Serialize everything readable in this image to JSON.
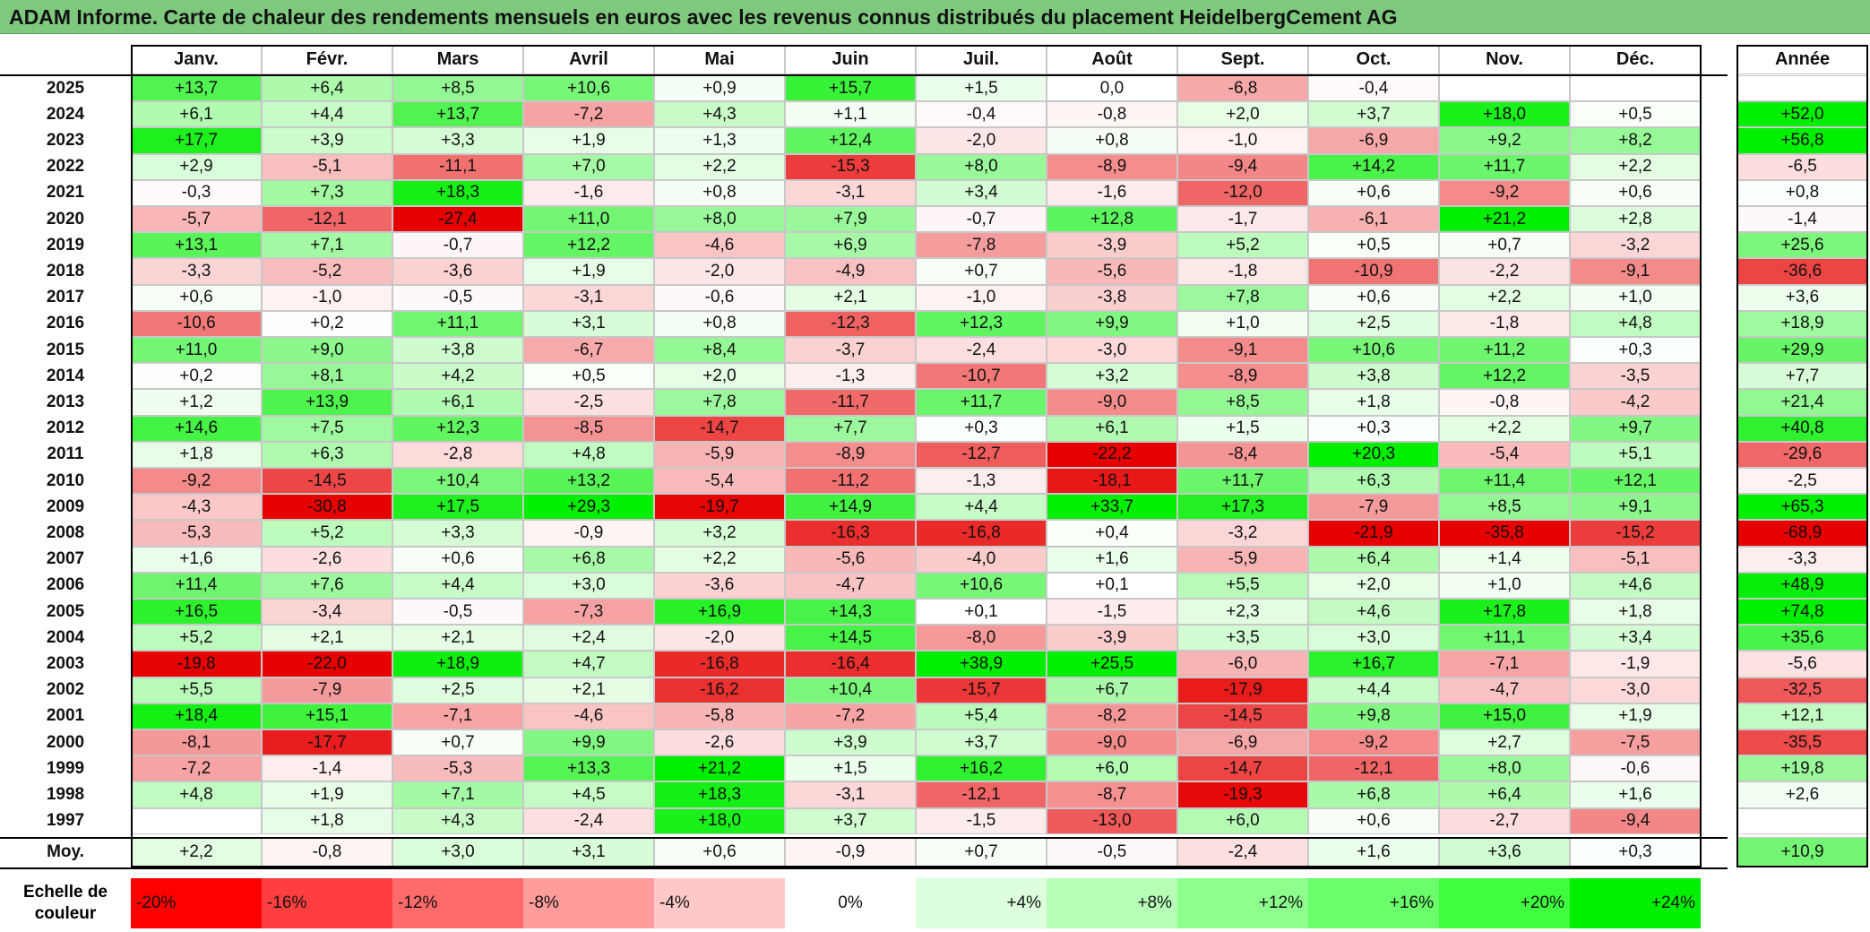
{
  "title": "ADAM Informe. Carte de chaleur des rendements mensuels en euros avec les revenus connus distribués du placement HeidelbergCement AG",
  "chart_data": {
    "type": "heatmap",
    "columns": [
      "Janv.",
      "Févr.",
      "Mars",
      "Avril",
      "Mai",
      "Juin",
      "Juil.",
      "Août",
      "Sept.",
      "Oct.",
      "Nov.",
      "Déc."
    ],
    "year_column_label": "Année",
    "rows": [
      {
        "year": "2025",
        "values": [
          "+13,7",
          "+6,4",
          "+8,5",
          "+10,6",
          "+0,9",
          "+15,7",
          "+1,5",
          "0,0",
          "-6,8",
          "-0,4",
          "",
          ""
        ],
        "annual": ""
      },
      {
        "year": "2024",
        "values": [
          "+6,1",
          "+4,4",
          "+13,7",
          "-7,2",
          "+4,3",
          "+1,1",
          "-0,4",
          "-0,8",
          "+2,0",
          "+3,7",
          "+18,0",
          "+0,5"
        ],
        "annual": "+52,0"
      },
      {
        "year": "2023",
        "values": [
          "+17,7",
          "+3,9",
          "+3,3",
          "+1,9",
          "+1,3",
          "+12,4",
          "-2,0",
          "+0,8",
          "-1,0",
          "-6,9",
          "+9,2",
          "+8,2"
        ],
        "annual": "+56,8"
      },
      {
        "year": "2022",
        "values": [
          "+2,9",
          "-5,1",
          "-11,1",
          "+7,0",
          "+2,2",
          "-15,3",
          "+8,0",
          "-8,9",
          "-9,4",
          "+14,2",
          "+11,7",
          "+2,2"
        ],
        "annual": "-6,5"
      },
      {
        "year": "2021",
        "values": [
          "-0,3",
          "+7,3",
          "+18,3",
          "-1,6",
          "+0,8",
          "-3,1",
          "+3,4",
          "-1,6",
          "-12,0",
          "+0,6",
          "-9,2",
          "+0,6"
        ],
        "annual": "+0,8"
      },
      {
        "year": "2020",
        "values": [
          "-5,7",
          "-12,1",
          "-27,4",
          "+11,0",
          "+8,0",
          "+7,9",
          "-0,7",
          "+12,8",
          "-1,7",
          "-6,1",
          "+21,2",
          "+2,8"
        ],
        "annual": "-1,4"
      },
      {
        "year": "2019",
        "values": [
          "+13,1",
          "+7,1",
          "-0,7",
          "+12,2",
          "-4,6",
          "+6,9",
          "-7,8",
          "-3,9",
          "+5,2",
          "+0,5",
          "+0,7",
          "-3,2"
        ],
        "annual": "+25,6"
      },
      {
        "year": "2018",
        "values": [
          "-3,3",
          "-5,2",
          "-3,6",
          "+1,9",
          "-2,0",
          "-4,9",
          "+0,7",
          "-5,6",
          "-1,8",
          "-10,9",
          "-2,2",
          "-9,1"
        ],
        "annual": "-36,6"
      },
      {
        "year": "2017",
        "values": [
          "+0,6",
          "-1,0",
          "-0,5",
          "-3,1",
          "-0,6",
          "+2,1",
          "-1,0",
          "-3,8",
          "+7,8",
          "+0,6",
          "+2,2",
          "+1,0"
        ],
        "annual": "+3,6"
      },
      {
        "year": "2016",
        "values": [
          "-10,6",
          "+0,2",
          "+11,1",
          "+3,1",
          "+0,8",
          "-12,3",
          "+12,3",
          "+9,9",
          "+1,0",
          "+2,5",
          "-1,8",
          "+4,8"
        ],
        "annual": "+18,9"
      },
      {
        "year": "2015",
        "values": [
          "+11,0",
          "+9,0",
          "+3,8",
          "-6,7",
          "+8,4",
          "-3,7",
          "-2,4",
          "-3,0",
          "-9,1",
          "+10,6",
          "+11,2",
          "+0,3"
        ],
        "annual": "+29,9"
      },
      {
        "year": "2014",
        "values": [
          "+0,2",
          "+8,1",
          "+4,2",
          "+0,5",
          "+2,0",
          "-1,3",
          "-10,7",
          "+3,2",
          "-8,9",
          "+3,8",
          "+12,2",
          "-3,5"
        ],
        "annual": "+7,7"
      },
      {
        "year": "2013",
        "values": [
          "+1,2",
          "+13,9",
          "+6,1",
          "-2,5",
          "+7,8",
          "-11,7",
          "+11,7",
          "-9,0",
          "+8,5",
          "+1,8",
          "-0,8",
          "-4,2"
        ],
        "annual": "+21,4"
      },
      {
        "year": "2012",
        "values": [
          "+14,6",
          "+7,5",
          "+12,3",
          "-8,5",
          "-14,7",
          "+7,7",
          "+0,3",
          "+6,1",
          "+1,5",
          "+0,3",
          "+2,2",
          "+9,7"
        ],
        "annual": "+40,8"
      },
      {
        "year": "2011",
        "values": [
          "+1,8",
          "+6,3",
          "-2,8",
          "+4,8",
          "-5,9",
          "-8,9",
          "-12,7",
          "-22,2",
          "-8,4",
          "+20,3",
          "-5,4",
          "+5,1"
        ],
        "annual": "-29,6"
      },
      {
        "year": "2010",
        "values": [
          "-9,2",
          "-14,5",
          "+10,4",
          "+13,2",
          "-5,4",
          "-11,2",
          "-1,3",
          "-18,1",
          "+11,7",
          "+6,3",
          "+11,4",
          "+12,1"
        ],
        "annual": "-2,5"
      },
      {
        "year": "2009",
        "values": [
          "-4,3",
          "-30,8",
          "+17,5",
          "+29,3",
          "-19,7",
          "+14,9",
          "+4,4",
          "+33,7",
          "+17,3",
          "-7,9",
          "+8,5",
          "+9,1"
        ],
        "annual": "+65,3"
      },
      {
        "year": "2008",
        "values": [
          "-5,3",
          "+5,2",
          "+3,3",
          "-0,9",
          "+3,2",
          "-16,3",
          "-16,8",
          "+0,4",
          "-3,2",
          "-21,9",
          "-35,8",
          "-15,2"
        ],
        "annual": "-68,9"
      },
      {
        "year": "2007",
        "values": [
          "+1,6",
          "-2,6",
          "+0,6",
          "+6,8",
          "+2,2",
          "-5,6",
          "-4,0",
          "+1,6",
          "-5,9",
          "+6,4",
          "+1,4",
          "-5,1"
        ],
        "annual": "-3,3"
      },
      {
        "year": "2006",
        "values": [
          "+11,4",
          "+7,6",
          "+4,4",
          "+3,0",
          "-3,6",
          "-4,7",
          "+10,6",
          "+0,1",
          "+5,5",
          "+2,0",
          "+1,0",
          "+4,6"
        ],
        "annual": "+48,9"
      },
      {
        "year": "2005",
        "values": [
          "+16,5",
          "-3,4",
          "-0,5",
          "-7,3",
          "+16,9",
          "+14,3",
          "+0,1",
          "-1,5",
          "+2,3",
          "+4,6",
          "+17,8",
          "+1,8"
        ],
        "annual": "+74,8"
      },
      {
        "year": "2004",
        "values": [
          "+5,2",
          "+2,1",
          "+2,1",
          "+2,4",
          "-2,0",
          "+14,5",
          "-8,0",
          "-3,9",
          "+3,5",
          "+3,0",
          "+11,1",
          "+3,4"
        ],
        "annual": "+35,6"
      },
      {
        "year": "2003",
        "values": [
          "-19,8",
          "-22,0",
          "+18,9",
          "+4,7",
          "-16,8",
          "-16,4",
          "+38,9",
          "+25,5",
          "-6,0",
          "+16,7",
          "-7,1",
          "-1,9"
        ],
        "annual": "-5,6"
      },
      {
        "year": "2002",
        "values": [
          "+5,5",
          "-7,9",
          "+2,5",
          "+2,1",
          "-16,2",
          "+10,4",
          "-15,7",
          "+6,7",
          "-17,9",
          "+4,4",
          "-4,7",
          "-3,0"
        ],
        "annual": "-32,5"
      },
      {
        "year": "2001",
        "values": [
          "+18,4",
          "+15,1",
          "-7,1",
          "-4,6",
          "-5,8",
          "-7,2",
          "+5,4",
          "-8,2",
          "-14,5",
          "+9,8",
          "+15,0",
          "+1,9"
        ],
        "annual": "+12,1"
      },
      {
        "year": "2000",
        "values": [
          "-8,1",
          "-17,7",
          "+0,7",
          "+9,9",
          "-2,6",
          "+3,9",
          "+3,7",
          "-9,0",
          "-6,9",
          "-9,2",
          "+2,7",
          "-7,5"
        ],
        "annual": "-35,5"
      },
      {
        "year": "1999",
        "values": [
          "-7,2",
          "-1,4",
          "-5,3",
          "+13,3",
          "+21,2",
          "+1,5",
          "+16,2",
          "+6,0",
          "-14,7",
          "-12,1",
          "+8,0",
          "-0,6"
        ],
        "annual": "+19,8"
      },
      {
        "year": "1998",
        "values": [
          "+4,8",
          "+1,9",
          "+7,1",
          "+4,5",
          "+18,3",
          "-3,1",
          "-12,1",
          "-8,7",
          "-19,3",
          "+6,8",
          "+6,4",
          "+1,6"
        ],
        "annual": "+2,6"
      },
      {
        "year": "1997",
        "values": [
          "",
          "+1,8",
          "+4,3",
          "-2,4",
          "+18,0",
          "+3,7",
          "-1,5",
          "-13,0",
          "+6,0",
          "+0,6",
          "-2,7",
          "-9,4"
        ],
        "annual": ""
      }
    ],
    "average": {
      "label": "Moy.",
      "values": [
        "+2,2",
        "-0,8",
        "+3,0",
        "+3,1",
        "+0,6",
        "-0,9",
        "+0,7",
        "-0,5",
        "-2,4",
        "+1,6",
        "+3,6",
        "+0,3"
      ],
      "annual": "+10,9"
    },
    "color_scale": {
      "label": "Echelle de couleur",
      "steps": [
        "-20%",
        "-16%",
        "-12%",
        "-8%",
        "-4%",
        "0%",
        "+4%",
        "+8%",
        "+12%",
        "+16%",
        "+20%",
        "+24%"
      ],
      "colors": [
        "#ff0000",
        "#ff3f3f",
        "#ff6a6a",
        "#ff9d9d",
        "#ffc8c8",
        "#ffffff",
        "#dcffdc",
        "#b6ffb6",
        "#8dff8d",
        "#6aff6a",
        "#3fff3f",
        "#00f000"
      ]
    }
  }
}
